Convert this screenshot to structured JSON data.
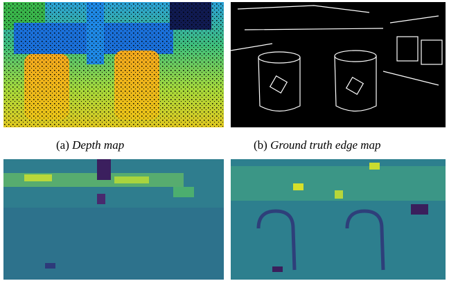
{
  "figure": {
    "subfigures": [
      {
        "label": "(a)",
        "caption": "Depth map"
      },
      {
        "label": "(b)",
        "caption": "Ground truth edge map"
      }
    ]
  }
}
